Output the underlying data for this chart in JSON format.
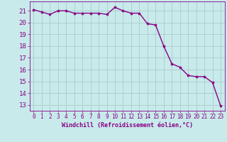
{
  "x": [
    0,
    1,
    2,
    3,
    4,
    5,
    6,
    7,
    8,
    9,
    10,
    11,
    12,
    13,
    14,
    15,
    16,
    17,
    18,
    19,
    20,
    21,
    22,
    23
  ],
  "y": [
    21.1,
    20.9,
    20.7,
    21.0,
    21.0,
    20.8,
    20.8,
    20.8,
    20.8,
    20.7,
    21.3,
    21.0,
    20.8,
    20.8,
    19.9,
    19.8,
    18.0,
    16.5,
    16.2,
    15.5,
    15.4,
    15.4,
    14.9,
    12.9
  ],
  "line_color": "#880088",
  "marker": "*",
  "bg_color": "#c8eaea",
  "grid_color": "#aacccc",
  "xlabel": "Windchill (Refroidissement éolien,°C)",
  "xlim": [
    -0.5,
    23.5
  ],
  "ylim": [
    12.5,
    21.8
  ],
  "yticks": [
    13,
    14,
    15,
    16,
    17,
    18,
    19,
    20,
    21
  ],
  "xticks": [
    0,
    1,
    2,
    3,
    4,
    5,
    6,
    7,
    8,
    9,
    10,
    11,
    12,
    13,
    14,
    15,
    16,
    17,
    18,
    19,
    20,
    21,
    22,
    23
  ],
  "tick_color": "#880088",
  "font_family": "monospace",
  "markersize": 3,
  "linewidth": 1.0
}
